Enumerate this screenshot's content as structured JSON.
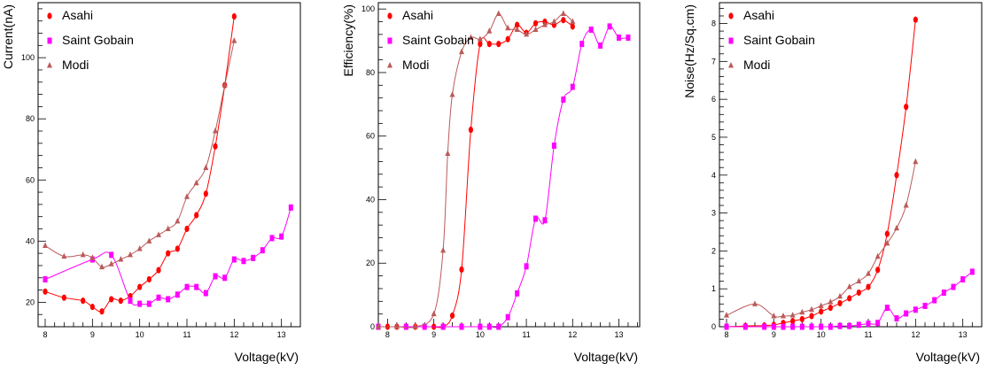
{
  "series_colors": {
    "Asahi": "#ff0000",
    "Saint Gobain": "#ff00ff",
    "Modi": "#bc5a5a"
  },
  "chart_data": [
    {
      "type": "line",
      "xlabel": "Voltage(kV)",
      "ylabel": "Current(nA)",
      "xlim": [
        7.85,
        13.4
      ],
      "ylim": [
        12,
        118
      ],
      "xticks": [
        8,
        9,
        10,
        11,
        12,
        13
      ],
      "yticks": [
        20,
        40,
        60,
        80,
        100
      ],
      "legend": "top-left",
      "series": [
        {
          "name": "Asahi",
          "marker": "circle",
          "x": [
            8.0,
            8.4,
            8.8,
            9.0,
            9.2,
            9.4,
            9.6,
            9.8,
            10.0,
            10.2,
            10.4,
            10.6,
            10.8,
            11.0,
            11.2,
            11.4,
            11.6,
            11.8,
            12.0
          ],
          "y": [
            23.5,
            21.5,
            20.5,
            18.5,
            17.0,
            21.0,
            20.5,
            22.0,
            25.0,
            27.5,
            30.5,
            36.0,
            37.5,
            44.0,
            48.5,
            55.5,
            71.0,
            91.0,
            113.5
          ]
        },
        {
          "name": "Saint Gobain",
          "marker": "square",
          "x": [
            8.0,
            9.0,
            9.4,
            9.8,
            10.0,
            10.2,
            10.4,
            10.6,
            10.8,
            11.0,
            11.2,
            11.4,
            11.6,
            11.8,
            12.0,
            12.2,
            12.4,
            12.6,
            12.8,
            13.0,
            13.2
          ],
          "y": [
            27.5,
            34.0,
            35.5,
            20.5,
            19.5,
            19.5,
            21.5,
            21.0,
            22.5,
            25.0,
            25.0,
            23.0,
            28.5,
            28.0,
            34.0,
            33.5,
            34.5,
            37.0,
            41.0,
            41.5,
            51.0
          ]
        },
        {
          "name": "Modi",
          "marker": "triangle",
          "x": [
            8.0,
            8.4,
            8.8,
            9.0,
            9.2,
            9.4,
            9.6,
            9.8,
            10.0,
            10.2,
            10.4,
            10.6,
            10.8,
            11.0,
            11.2,
            11.4,
            11.6,
            11.8,
            12.0
          ],
          "y": [
            38.5,
            35.0,
            35.5,
            34.5,
            31.5,
            32.5,
            34.0,
            35.5,
            37.5,
            40.0,
            42.0,
            44.0,
            46.5,
            54.5,
            59.0,
            64.0,
            76.0,
            91.0,
            105.5
          ]
        }
      ]
    },
    {
      "type": "line",
      "xlabel": "Voltage(kV)",
      "ylabel": "Efficiency(%)",
      "xlim": [
        7.8,
        13.45
      ],
      "ylim": [
        0,
        102
      ],
      "xticks": [
        8,
        9,
        10,
        11,
        12,
        13
      ],
      "yticks": [
        0,
        20,
        40,
        60,
        80,
        100
      ],
      "legend": "top-left",
      "series": [
        {
          "name": "Asahi",
          "marker": "circle",
          "x": [
            7.8,
            8.0,
            8.2,
            8.4,
            8.6,
            8.8,
            9.0,
            9.2,
            9.4,
            9.6,
            9.8,
            10.0,
            10.2,
            10.4,
            10.6,
            10.8,
            11.0,
            11.2,
            11.4,
            11.6,
            11.8,
            12.0
          ],
          "y": [
            0,
            0,
            0,
            0,
            0,
            0,
            0,
            0,
            3.5,
            18.0,
            62.0,
            89.0,
            89.0,
            89.0,
            90.5,
            95.0,
            92.5,
            95.5,
            96.0,
            95.0,
            96.5,
            94.5
          ]
        },
        {
          "name": "Saint Gobain",
          "marker": "square",
          "x": [
            7.8,
            8.4,
            8.8,
            9.2,
            9.6,
            10.0,
            10.2,
            10.4,
            10.6,
            10.8,
            11.0,
            11.2,
            11.4,
            11.6,
            11.8,
            12.0,
            12.2,
            12.4,
            12.6,
            12.8,
            13.0,
            13.2
          ],
          "y": [
            0,
            0,
            0,
            0,
            0,
            0,
            0,
            0,
            3.0,
            10.5,
            19.0,
            34.0,
            33.5,
            57.0,
            71.5,
            75.5,
            89.0,
            93.5,
            88.5,
            94.5,
            91.0,
            91.0
          ]
        },
        {
          "name": "Modi",
          "marker": "triangle",
          "x": [
            7.8,
            8.2,
            8.6,
            9.0,
            9.2,
            9.3,
            9.4,
            9.6,
            9.8,
            10.0,
            10.2,
            10.4,
            10.6,
            10.8,
            11.0,
            11.2,
            11.4,
            11.6,
            11.8,
            12.0
          ],
          "y": [
            0,
            0,
            0,
            4.0,
            24.0,
            54.5,
            73.0,
            86.5,
            91.0,
            90.5,
            93.0,
            98.5,
            94.0,
            93.5,
            92.0,
            93.5,
            95.0,
            96.0,
            98.5,
            96.0
          ]
        }
      ]
    },
    {
      "type": "line",
      "xlabel": "Voltage(kV)",
      "ylabel": "Noise(Hz/Sq.cm)",
      "xlim": [
        7.85,
        13.4
      ],
      "ylim": [
        0,
        8.55
      ],
      "xticks": [
        8,
        9,
        10,
        11,
        12,
        13
      ],
      "yticks": [
        0,
        1,
        2,
        3,
        4,
        5,
        6,
        7,
        8
      ],
      "legend": "top-left",
      "series": [
        {
          "name": "Asahi",
          "marker": "circle",
          "x": [
            8.0,
            8.4,
            8.8,
            9.0,
            9.2,
            9.4,
            9.6,
            9.8,
            10.0,
            10.2,
            10.4,
            10.6,
            10.8,
            11.0,
            11.2,
            11.4,
            11.6,
            11.8,
            12.0
          ],
          "y": [
            0.0,
            0.02,
            0.03,
            0.05,
            0.1,
            0.15,
            0.2,
            0.28,
            0.4,
            0.5,
            0.62,
            0.75,
            0.9,
            1.05,
            1.5,
            2.45,
            4.0,
            5.8,
            8.1
          ]
        },
        {
          "name": "Saint Gobain",
          "marker": "square",
          "x": [
            8.0,
            8.4,
            8.8,
            9.0,
            9.2,
            9.4,
            9.6,
            9.8,
            10.0,
            10.2,
            10.4,
            10.6,
            10.8,
            11.0,
            11.2,
            11.4,
            11.6,
            11.8,
            12.0,
            12.2,
            12.4,
            12.6,
            12.8,
            13.0,
            13.2
          ],
          "y": [
            0.0,
            0.0,
            0.0,
            0.0,
            0.0,
            0.0,
            0.0,
            0.0,
            0.0,
            0.0,
            0.02,
            0.02,
            0.05,
            0.08,
            0.1,
            0.5,
            0.22,
            0.35,
            0.45,
            0.55,
            0.7,
            0.9,
            1.05,
            1.25,
            1.45
          ]
        },
        {
          "name": "Modi",
          "marker": "triangle",
          "x": [
            8.0,
            8.6,
            9.0,
            9.2,
            9.4,
            9.6,
            9.8,
            10.0,
            10.2,
            10.4,
            10.6,
            10.8,
            11.0,
            11.2,
            11.4,
            11.6,
            11.8,
            12.0
          ],
          "y": [
            0.3,
            0.6,
            0.28,
            0.28,
            0.3,
            0.38,
            0.45,
            0.55,
            0.65,
            0.8,
            1.05,
            1.2,
            1.4,
            1.85,
            2.2,
            2.6,
            3.2,
            4.35
          ]
        }
      ]
    }
  ]
}
